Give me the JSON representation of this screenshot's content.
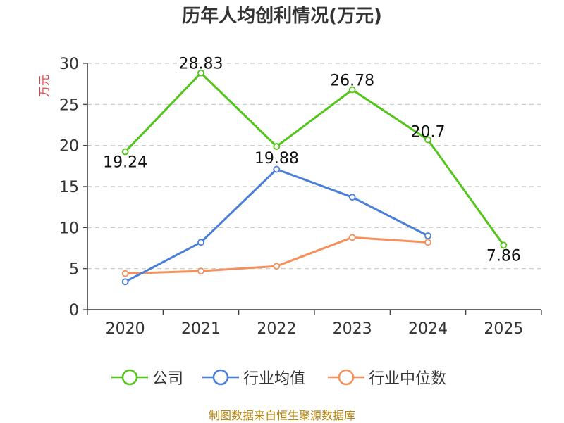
{
  "footer": "制图数据来自恒生聚源数据库",
  "colors": {
    "company": "#52c41a",
    "industry_avg": "#4a7fd9",
    "industry_median": "#f5905a",
    "footer": "#b8860b",
    "ylabel": "#e04040"
  },
  "chart_data": {
    "type": "line",
    "title": "历年人均创利情况(万元)",
    "ylabel": "万元",
    "xlabel": "",
    "categories": [
      "2020",
      "2021",
      "2022",
      "2023",
      "2024",
      "2025"
    ],
    "ylim": [
      0,
      30
    ],
    "yticks": [
      0,
      5,
      10,
      15,
      20,
      25,
      30
    ],
    "grid": true,
    "legend_position": "bottom",
    "series": [
      {
        "name": "公司",
        "values": [
          19.24,
          28.83,
          19.88,
          26.78,
          20.7,
          7.86
        ],
        "labels": [
          "19.24",
          "28.83",
          "19.88",
          "26.78",
          "20.7",
          "7.86"
        ]
      },
      {
        "name": "行业均值",
        "values": [
          3.4,
          8.2,
          17.1,
          13.7,
          9.0,
          null
        ]
      },
      {
        "name": "行业中位数",
        "values": [
          4.4,
          4.7,
          5.3,
          8.8,
          8.2,
          null
        ]
      }
    ]
  }
}
